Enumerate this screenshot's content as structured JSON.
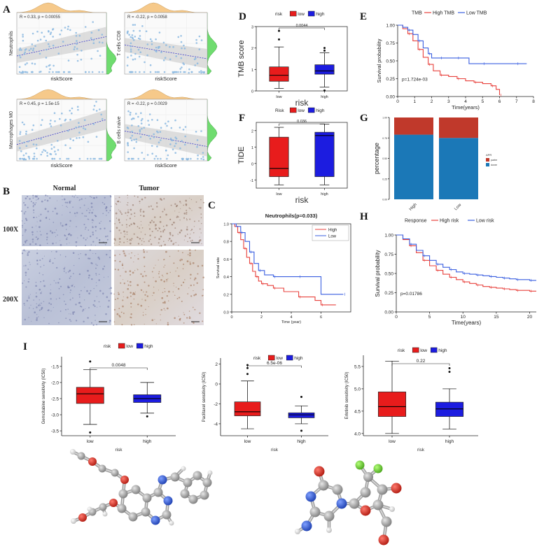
{
  "figure": {
    "panel_labels": [
      "A",
      "B",
      "C",
      "D",
      "E",
      "F",
      "G",
      "H",
      "I"
    ]
  },
  "panel_A": {
    "plots": [
      {
        "ylabel": "Neutrophils",
        "stat": "R = 0.33, p = 0.00055",
        "xlabel": "riskScore"
      },
      {
        "ylabel": "T cells CD8",
        "stat": "R = -0.22, p = 0.0058",
        "xlabel": "riskScore"
      },
      {
        "ylabel": "Macrophages M0",
        "stat": "R = 0.45, p = 1.5e-15",
        "xlabel": "riskScore"
      },
      {
        "ylabel": "B cells naive",
        "stat": "R = -0.22, p = 0.0029",
        "xlabel": "riskScore"
      }
    ],
    "colors": {
      "points": "#8bb8e0",
      "top_density": "#f6c98a",
      "side_density": "#6fdc6f"
    }
  },
  "panel_B": {
    "col_headers": [
      "Normal",
      "Tumor"
    ],
    "row_labels": [
      "100X",
      "200X"
    ]
  },
  "chart_data": [
    {
      "id": "C",
      "type": "line",
      "title": "Neutrophils(p=0.033)",
      "xlabel": "Time (year)",
      "ylabel": "Survival rate",
      "xlim": [
        0,
        8
      ],
      "ylim": [
        0,
        1.0
      ],
      "xticks": [
        0,
        2,
        4,
        6
      ],
      "yticks": [
        0.0,
        0.2,
        0.4,
        0.6,
        0.8,
        1.0
      ],
      "legend": [
        "High",
        "Low"
      ],
      "series": [
        {
          "name": "High",
          "color": "#e8413c",
          "x": [
            0,
            0.2,
            0.4,
            0.6,
            0.8,
            1.0,
            1.2,
            1.4,
            1.6,
            1.8,
            2.0,
            2.4,
            2.8,
            3.5,
            4.5,
            5.6,
            6.0,
            7.0
          ],
          "y": [
            1.0,
            0.97,
            0.9,
            0.82,
            0.72,
            0.62,
            0.55,
            0.46,
            0.4,
            0.35,
            0.32,
            0.3,
            0.27,
            0.23,
            0.17,
            0.13,
            0.08,
            0.08
          ]
        },
        {
          "name": "Low",
          "color": "#3a5fe0",
          "x": [
            0,
            0.3,
            0.6,
            0.9,
            1.2,
            1.5,
            1.8,
            2.2,
            2.8,
            3.6,
            4.5,
            6.0,
            7.5
          ],
          "y": [
            1.0,
            0.97,
            0.9,
            0.8,
            0.68,
            0.55,
            0.47,
            0.42,
            0.4,
            0.4,
            0.4,
            0.2,
            0.2
          ]
        }
      ]
    },
    {
      "id": "D",
      "type": "box",
      "title": "",
      "legend_title": "risk",
      "legend": [
        "low",
        "high"
      ],
      "xlabel": "risk",
      "ylabel": "TMB score",
      "categories": [
        "low",
        "high"
      ],
      "ylim": [
        0,
        3
      ],
      "yticks": [
        0,
        1,
        2,
        3
      ],
      "pvalue": "0.0044",
      "boxes": [
        {
          "name": "low",
          "color": "#e81c1c",
          "q1": 0.45,
          "median": 0.73,
          "q3": 1.12,
          "wlo": 0.12,
          "whi": 2.05,
          "outliers": [
            2.4,
            2.8
          ]
        },
        {
          "name": "high",
          "color": "#1c1ce0",
          "q1": 0.78,
          "median": 0.93,
          "q3": 1.22,
          "wlo": 0.18,
          "whi": 1.78,
          "outliers": [
            0.02,
            1.88,
            2.0
          ]
        }
      ]
    },
    {
      "id": "E",
      "type": "line",
      "legend_title": "TMB",
      "legend": [
        "High TMB",
        "Low TMB"
      ],
      "xlabel": "Time(years)",
      "ylabel": "Survival probability",
      "xlim": [
        0,
        8
      ],
      "ylim": [
        0,
        1.0
      ],
      "xticks": [
        0,
        1,
        2,
        3,
        4,
        5,
        6,
        7,
        8
      ],
      "yticks": [
        0.0,
        0.25,
        0.5,
        0.75,
        1.0
      ],
      "pvalue": "p=1.724e-03",
      "series": [
        {
          "name": "High TMB",
          "color": "#e8413c",
          "x": [
            0,
            0.3,
            0.6,
            0.9,
            1.2,
            1.5,
            1.8,
            2.1,
            2.5,
            3.0,
            3.5,
            4.0,
            4.5,
            5.0,
            5.5,
            5.8,
            6.0
          ],
          "y": [
            1.0,
            0.95,
            0.88,
            0.78,
            0.66,
            0.55,
            0.45,
            0.36,
            0.3,
            0.28,
            0.25,
            0.22,
            0.2,
            0.18,
            0.15,
            0.1,
            0.02
          ]
        },
        {
          "name": "Low TMB",
          "color": "#3a5fe0",
          "x": [
            0,
            0.3,
            0.6,
            0.9,
            1.2,
            1.5,
            1.8,
            2.0,
            2.5,
            3.0,
            3.5,
            4.2,
            5.0,
            6.0,
            7.0,
            7.6
          ],
          "y": [
            1.0,
            0.97,
            0.93,
            0.87,
            0.78,
            0.68,
            0.6,
            0.54,
            0.54,
            0.54,
            0.54,
            0.46,
            0.46,
            0.46,
            0.46,
            0.46
          ]
        }
      ]
    },
    {
      "id": "F",
      "type": "box",
      "legend_title": "Risk",
      "legend": [
        "low",
        "high"
      ],
      "xlabel": "risk",
      "ylabel": "TIDE",
      "categories": [
        "low",
        "high"
      ],
      "ylim": [
        -1.5,
        2.5
      ],
      "yticks": [
        -1,
        0,
        1,
        2
      ],
      "pvalue": "0.036",
      "boxes": [
        {
          "name": "low",
          "color": "#e81c1c",
          "q1": -0.8,
          "median": -0.3,
          "q3": 1.6,
          "wlo": -1.3,
          "whi": 2.2,
          "outliers": []
        },
        {
          "name": "high",
          "color": "#1c1ce0",
          "q1": -0.8,
          "median": 1.7,
          "q3": 1.9,
          "wlo": -1.3,
          "whi": 2.4,
          "outliers": []
        }
      ]
    },
    {
      "id": "G",
      "type": "bar",
      "stacked": true,
      "ylabel": "percentage",
      "categories": [
        "High",
        "Low"
      ],
      "legend_title": "APR",
      "legend": [
        "partre",
        "donre"
      ],
      "yticks": [
        0.0,
        0.25,
        0.5,
        0.75,
        1.0
      ],
      "series": [
        {
          "name": "donre",
          "color": "#1b78b7",
          "values": [
            0.79,
            0.75
          ]
        },
        {
          "name": "partre",
          "color": "#c0392b",
          "values": [
            0.21,
            0.25
          ]
        }
      ]
    },
    {
      "id": "H",
      "type": "line",
      "legend_title": "Response",
      "legend": [
        "High risk",
        "Low risk"
      ],
      "xlabel": "Time(years)",
      "ylabel": "Survival probability",
      "xlim": [
        0,
        21
      ],
      "ylim": [
        0,
        1.0
      ],
      "xticks": [
        0,
        5,
        10,
        15,
        20
      ],
      "yticks": [
        0.0,
        0.25,
        0.5,
        0.75,
        1.0
      ],
      "pvalue": "p=0.01786",
      "series": [
        {
          "name": "High risk",
          "color": "#e8413c",
          "x": [
            0,
            1,
            2,
            3,
            4,
            5,
            6,
            7,
            8,
            9,
            10,
            11,
            12,
            13,
            14,
            15,
            16,
            17,
            18,
            19,
            20,
            21
          ],
          "y": [
            1.0,
            0.94,
            0.86,
            0.77,
            0.67,
            0.6,
            0.54,
            0.49,
            0.45,
            0.42,
            0.39,
            0.37,
            0.35,
            0.33,
            0.32,
            0.31,
            0.3,
            0.29,
            0.28,
            0.28,
            0.27,
            0.27
          ]
        },
        {
          "name": "Low risk",
          "color": "#3a5fe0",
          "x": [
            0,
            1,
            2,
            3,
            4,
            5,
            6,
            7,
            8,
            9,
            10,
            11,
            12,
            13,
            14,
            15,
            16,
            17,
            18,
            19,
            20,
            21
          ],
          "y": [
            1.0,
            0.95,
            0.88,
            0.8,
            0.73,
            0.67,
            0.62,
            0.58,
            0.55,
            0.52,
            0.5,
            0.49,
            0.48,
            0.47,
            0.46,
            0.45,
            0.44,
            0.43,
            0.42,
            0.42,
            0.41,
            0.41
          ]
        }
      ]
    },
    {
      "id": "I1",
      "type": "box",
      "legend_title": "risk",
      "legend": [
        "low",
        "high"
      ],
      "xlabel": "risk",
      "ylabel": "Gemcitabine sensitivity (IC50)",
      "categories": [
        "low",
        "high"
      ],
      "ylim": [
        -3.65,
        -1.2
      ],
      "yticks": [
        -3.5,
        -3.0,
        -2.5,
        -2.0,
        -1.5
      ],
      "pvalue": "0.0048",
      "boxes": [
        {
          "name": "low",
          "color": "#e81c1c",
          "q1": -2.65,
          "median": -2.35,
          "q3": -2.15,
          "wlo": -3.3,
          "whi": -1.6,
          "outliers": [
            -3.55,
            -1.35
          ]
        },
        {
          "name": "high",
          "color": "#1c1ce0",
          "q1": -2.62,
          "median": -2.5,
          "q3": -2.38,
          "wlo": -2.95,
          "whi": -2.0,
          "outliers": [
            -3.05
          ]
        }
      ]
    },
    {
      "id": "I2",
      "type": "box",
      "legend_title": "risk",
      "legend": [
        "low",
        "high"
      ],
      "xlabel": "risk",
      "ylabel": "Paclitaxel sensitivity (IC50)",
      "categories": [
        "low",
        "high"
      ],
      "ylim": [
        -5.2,
        2.6
      ],
      "yticks": [
        -4,
        -2,
        0,
        2
      ],
      "pvalue": "6.5e-06",
      "boxes": [
        {
          "name": "low",
          "color": "#e81c1c",
          "q1": -3.2,
          "median": -2.8,
          "q3": -1.8,
          "wlo": -4.5,
          "whi": 0.3,
          "outliers": [
            1.0,
            1.6,
            1.9
          ]
        },
        {
          "name": "high",
          "color": "#1c1ce0",
          "q1": -3.4,
          "median": -3.1,
          "q3": -2.9,
          "wlo": -4.0,
          "whi": -2.2,
          "outliers": [
            -1.3,
            -4.7
          ]
        }
      ]
    },
    {
      "id": "I3",
      "type": "box",
      "legend_title": "risk",
      "legend": [
        "low",
        "high"
      ],
      "xlabel": "risk",
      "ylabel": "Erlotinib sensitivity (IC50)",
      "categories": [
        "low",
        "high"
      ],
      "ylim": [
        3.95,
        5.75
      ],
      "yticks": [
        4.0,
        4.5,
        5.0,
        5.5
      ],
      "pvalue": "0.22",
      "boxes": [
        {
          "name": "low",
          "color": "#e81c1c",
          "q1": 4.38,
          "median": 4.6,
          "q3": 4.93,
          "wlo": 4.0,
          "whi": 5.62,
          "outliers": []
        },
        {
          "name": "high",
          "color": "#1c1ce0",
          "q1": 4.38,
          "median": 4.55,
          "q3": 4.7,
          "wlo": 4.1,
          "whi": 5.0,
          "outliers": [
            5.38,
            5.46
          ]
        }
      ]
    }
  ]
}
